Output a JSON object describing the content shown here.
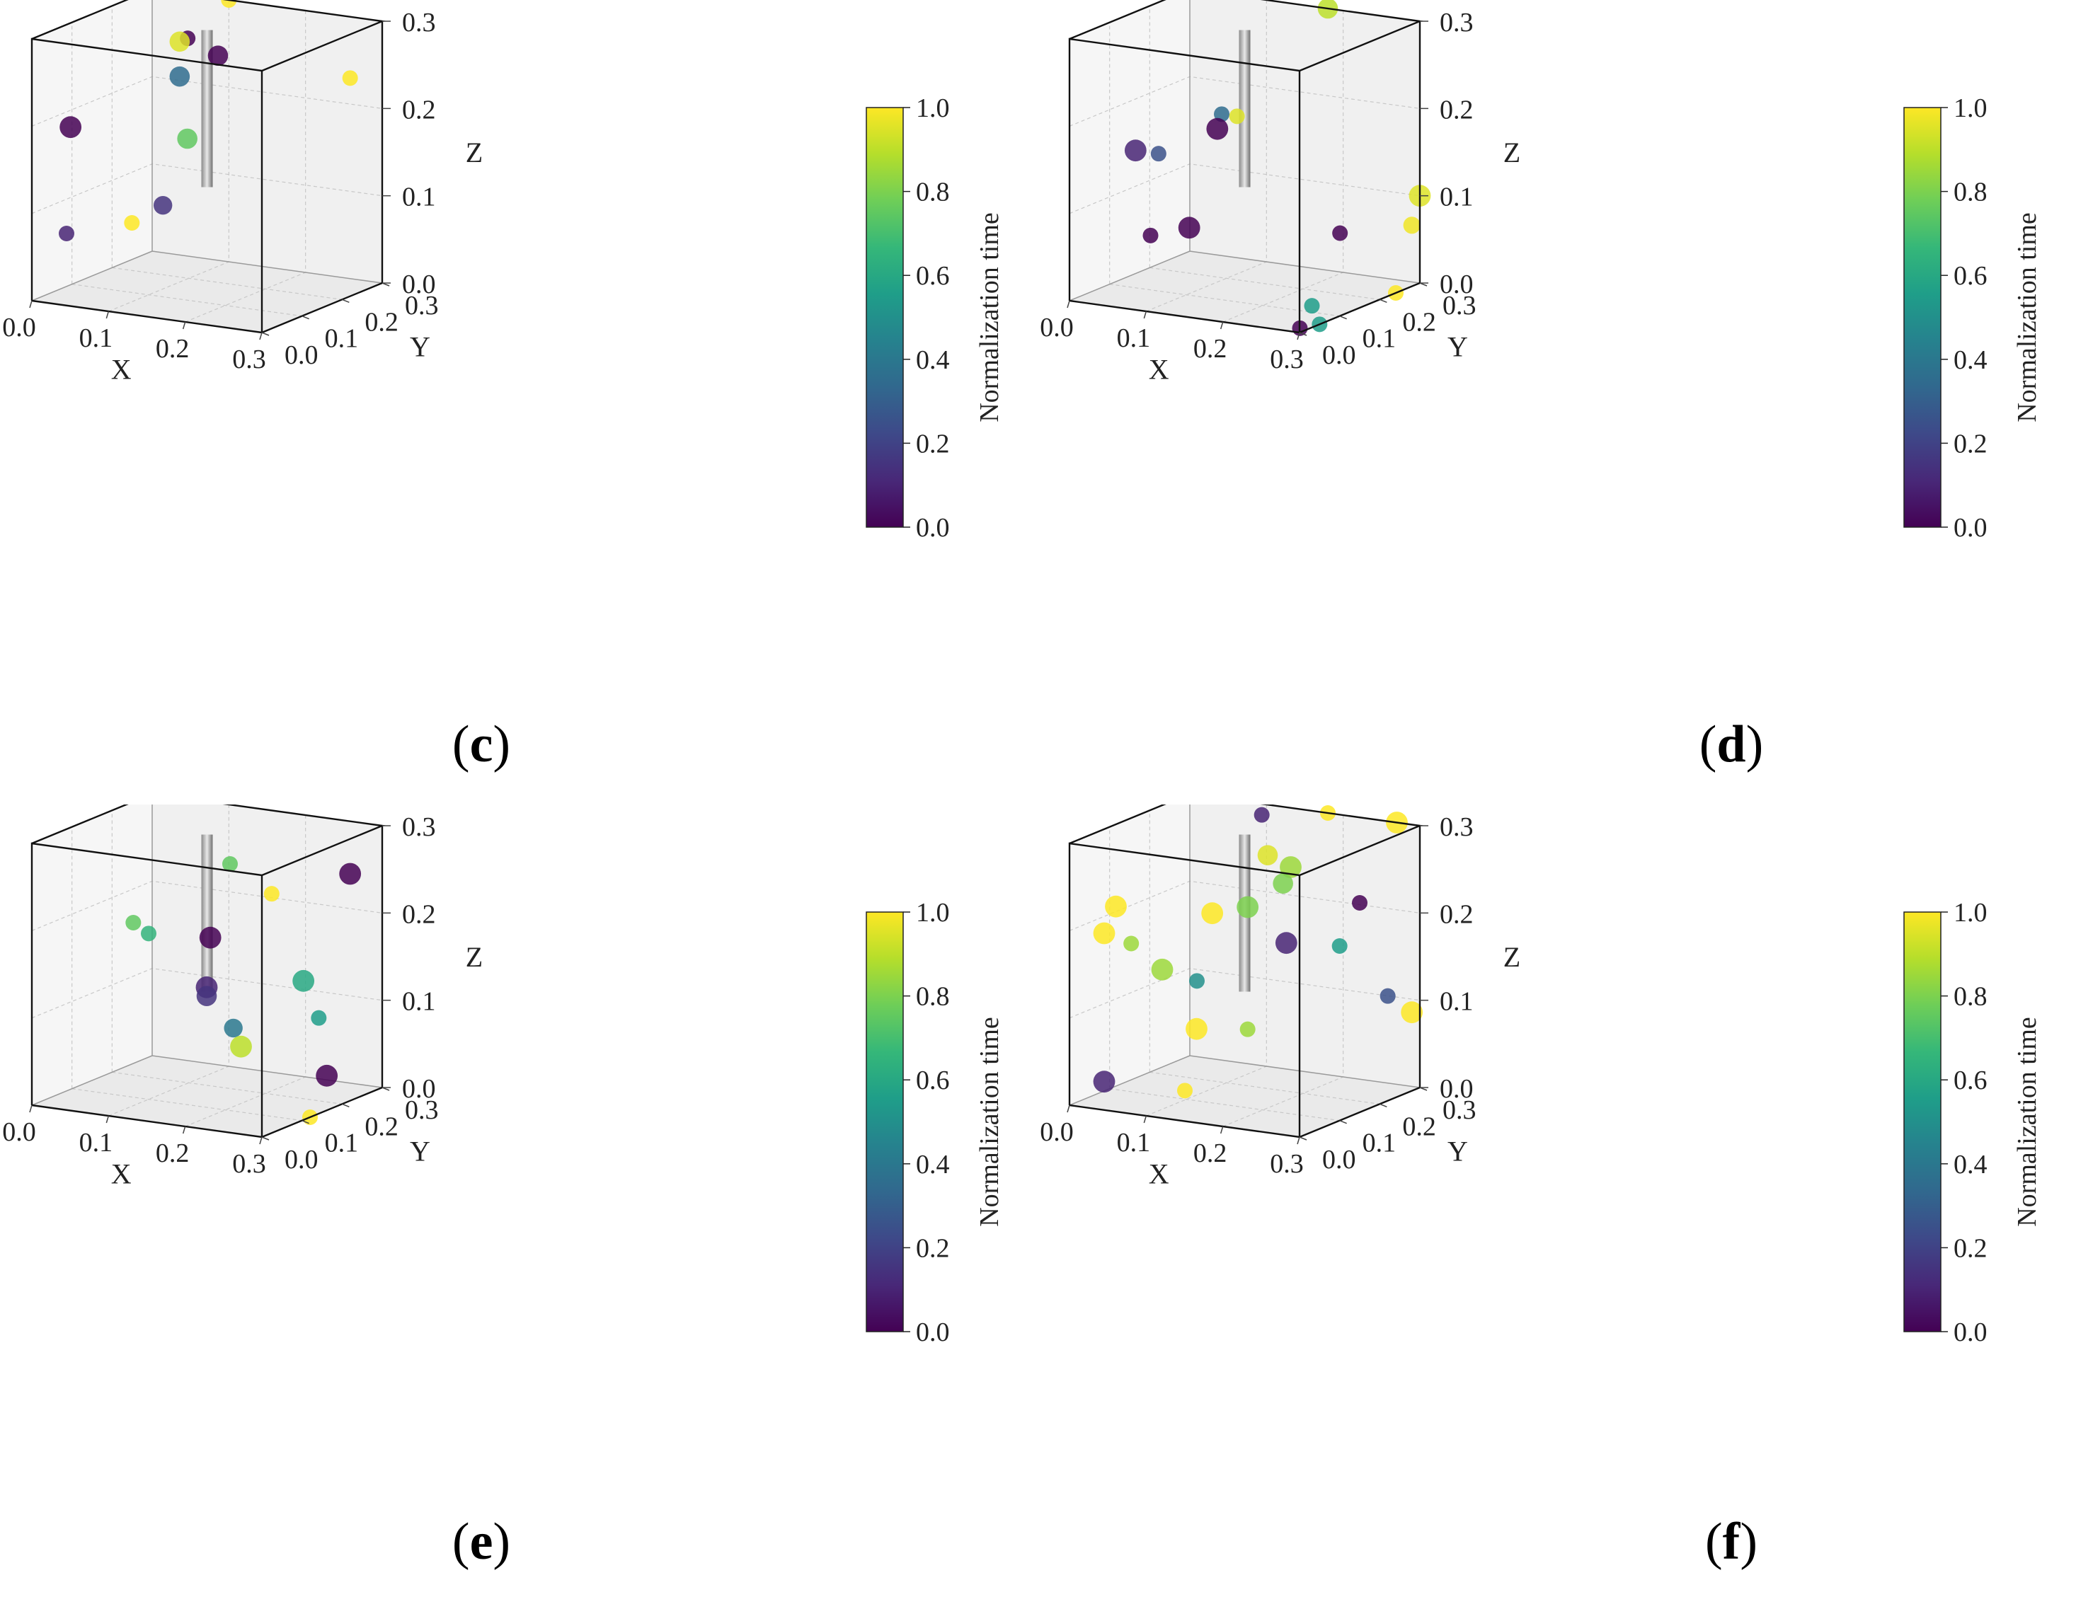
{
  "chart_data": [
    {
      "type": "scatter",
      "panel_label": "c",
      "xlabel": "X",
      "ylabel": "Y",
      "zlabel": "Z",
      "xlim": [
        0,
        0.3
      ],
      "ylim": [
        0,
        0.3
      ],
      "zlim": [
        0,
        0.3
      ],
      "x_ticks": [
        "0.0",
        "0.1",
        "0.2",
        "0.3"
      ],
      "y_ticks": [
        "0.0",
        "0.1",
        "0.2",
        "0.3"
      ],
      "z_ticks": [
        "0.0",
        "0.1",
        "0.2",
        "0.3"
      ],
      "colorbar": {
        "label": "Normalization time",
        "range": [
          0,
          1
        ],
        "ticks": [
          "0.0",
          "0.2",
          "0.4",
          "0.6",
          "0.8",
          "1.0"
        ],
        "colormap": "viridis"
      },
      "rod": {
        "x": 0.15,
        "y": 0.15,
        "z_range": [
          0.12,
          0.3
        ]
      },
      "points": [
        {
          "x": 0.1,
          "y": 0.3,
          "z": 0.3,
          "t": 1.0,
          "s": 1
        },
        {
          "x": 0.13,
          "y": 0.14,
          "z": 0.29,
          "t": 0.0,
          "s": 1
        },
        {
          "x": 0.13,
          "y": 0.12,
          "z": 0.29,
          "t": 0.95,
          "s": 1.3
        },
        {
          "x": 0.18,
          "y": 0.12,
          "z": 0.28,
          "t": 0.0,
          "s": 1.3
        },
        {
          "x": 0.13,
          "y": 0.12,
          "z": 0.25,
          "t": 0.35,
          "s": 1.3
        },
        {
          "x": 0.14,
          "y": 0.12,
          "z": 0.18,
          "t": 0.75,
          "s": 1.3
        },
        {
          "x": 0.3,
          "y": 0.22,
          "z": 0.25,
          "t": 1.0,
          "s": 1
        },
        {
          "x": 0.04,
          "y": 0.02,
          "z": 0.2,
          "t": 0.0,
          "s": 1.4
        },
        {
          "x": 0.04,
          "y": 0.01,
          "z": 0.08,
          "t": 0.1,
          "s": 1
        },
        {
          "x": 0.12,
          "y": 0.02,
          "z": 0.1,
          "t": 1.0,
          "s": 1
        },
        {
          "x": 0.15,
          "y": 0.04,
          "z": 0.12,
          "t": 0.15,
          "s": 1.2
        }
      ]
    },
    {
      "type": "scatter",
      "panel_label": "d",
      "xlabel": "X",
      "ylabel": "Y",
      "zlabel": "Z",
      "xlim": [
        0,
        0.3
      ],
      "ylim": [
        0,
        0.3
      ],
      "zlim": [
        0,
        0.3
      ],
      "x_ticks": [
        "0.0",
        "0.1",
        "0.2",
        "0.3"
      ],
      "y_ticks": [
        "0.0",
        "0.1",
        "0.2",
        "0.3"
      ],
      "z_ticks": [
        "0.0",
        "0.1",
        "0.2",
        "0.3"
      ],
      "colorbar": {
        "label": "Normalization time",
        "range": [
          0,
          1
        ],
        "ticks": [
          "0.0",
          "0.2",
          "0.4",
          "0.6",
          "0.8",
          "1.0"
        ],
        "colormap": "viridis"
      },
      "rod": {
        "x": 0.15,
        "y": 0.15,
        "z_range": [
          0.12,
          0.3
        ]
      },
      "points": [
        {
          "x": 0.18,
          "y": 0.3,
          "z": 0.3,
          "t": 0.9,
          "s": 1.3
        },
        {
          "x": 0.12,
          "y": 0.15,
          "z": 0.2,
          "t": 0.35,
          "s": 1
        },
        {
          "x": 0.14,
          "y": 0.15,
          "z": 0.2,
          "t": 0.95,
          "s": 1
        },
        {
          "x": 0.13,
          "y": 0.12,
          "z": 0.19,
          "t": 0.0,
          "s": 1.4
        },
        {
          "x": 0.06,
          "y": 0.05,
          "z": 0.17,
          "t": 0.1,
          "s": 1.4
        },
        {
          "x": 0.09,
          "y": 0.05,
          "z": 0.17,
          "t": 0.25,
          "s": 1
        },
        {
          "x": 0.09,
          "y": 0.03,
          "z": 0.08,
          "t": 0.0,
          "s": 1
        },
        {
          "x": 0.13,
          "y": 0.05,
          "z": 0.09,
          "t": 0.0,
          "s": 1.4
        },
        {
          "x": 0.29,
          "y": 0.12,
          "z": 0.09,
          "t": 0.0,
          "s": 1
        },
        {
          "x": 0.3,
          "y": 0.3,
          "z": 0.1,
          "t": 0.95,
          "s": 1.4
        },
        {
          "x": 0.3,
          "y": 0.28,
          "z": 0.07,
          "t": 0.98,
          "s": 1.1
        },
        {
          "x": 0.3,
          "y": 0.24,
          "z": 0.0,
          "t": 1.0,
          "s": 1
        },
        {
          "x": 0.29,
          "y": 0.05,
          "z": 0.02,
          "t": 0.55,
          "s": 1
        },
        {
          "x": 0.29,
          "y": 0.02,
          "z": 0.0,
          "t": 0.0,
          "s": 1
        },
        {
          "x": 0.3,
          "y": 0.05,
          "z": 0.0,
          "t": 0.55,
          "s": 1
        }
      ]
    },
    {
      "type": "scatter",
      "panel_label": "e",
      "xlabel": "X",
      "ylabel": "Y",
      "zlabel": "Z",
      "xlim": [
        0,
        0.3
      ],
      "ylim": [
        0,
        0.3
      ],
      "zlim": [
        0,
        0.3
      ],
      "x_ticks": [
        "0.0",
        "0.1",
        "0.2",
        "0.3"
      ],
      "y_ticks": [
        "0.0",
        "0.1",
        "0.2",
        "0.3"
      ],
      "z_ticks": [
        "0.0",
        "0.1",
        "0.2",
        "0.3"
      ],
      "colorbar": {
        "label": "Normalization time",
        "range": [
          0,
          1
        ],
        "ticks": [
          "0.0",
          "0.2",
          "0.4",
          "0.6",
          "0.8",
          "1.0"
        ],
        "colormap": "viridis"
      },
      "rod": {
        "x": 0.15,
        "y": 0.15,
        "z_range": [
          0.12,
          0.3
        ]
      },
      "points": [
        {
          "x": 0.18,
          "y": 0.15,
          "z": 0.27,
          "t": 0.75,
          "s": 1
        },
        {
          "x": 0.25,
          "y": 0.12,
          "z": 0.25,
          "t": 1.0,
          "s": 1
        },
        {
          "x": 0.3,
          "y": 0.22,
          "z": 0.26,
          "t": 0.0,
          "s": 1.4
        },
        {
          "x": 0.08,
          "y": 0.1,
          "z": 0.2,
          "t": 0.75,
          "s": 1
        },
        {
          "x": 0.1,
          "y": 0.1,
          "z": 0.19,
          "t": 0.65,
          "s": 1
        },
        {
          "x": 0.17,
          "y": 0.12,
          "z": 0.19,
          "t": 0.0,
          "s": 1.4
        },
        {
          "x": 0.26,
          "y": 0.18,
          "z": 0.14,
          "t": 0.6,
          "s": 1.4
        },
        {
          "x": 0.28,
          "y": 0.18,
          "z": 0.1,
          "t": 0.55,
          "s": 1
        },
        {
          "x": 0.16,
          "y": 0.13,
          "z": 0.13,
          "t": 0.1,
          "s": 1.4
        },
        {
          "x": 0.16,
          "y": 0.13,
          "z": 0.12,
          "t": 0.15,
          "s": 1.3
        },
        {
          "x": 0.2,
          "y": 0.12,
          "z": 0.09,
          "t": 0.4,
          "s": 1.2
        },
        {
          "x": 0.21,
          "y": 0.12,
          "z": 0.07,
          "t": 0.9,
          "s": 1.4
        },
        {
          "x": 0.28,
          "y": 0.2,
          "z": 0.03,
          "t": 0.0,
          "s": 1.4
        },
        {
          "x": 0.3,
          "y": 0.12,
          "z": 0.0,
          "t": 1.0,
          "s": 1
        }
      ]
    },
    {
      "type": "scatter",
      "panel_label": "f",
      "xlabel": "X",
      "ylabel": "Y",
      "zlabel": "Z",
      "xlim": [
        0,
        0.3
      ],
      "ylim": [
        0,
        0.3
      ],
      "zlim": [
        0,
        0.3
      ],
      "x_ticks": [
        "0.0",
        "0.1",
        "0.2",
        "0.3"
      ],
      "y_ticks": [
        "0.0",
        "0.1",
        "0.2",
        "0.3"
      ],
      "z_ticks": [
        "0.0",
        "0.1",
        "0.2",
        "0.3"
      ],
      "colorbar": {
        "label": "Normalization time",
        "range": [
          0,
          1
        ],
        "ticks": [
          "0.0",
          "0.2",
          "0.4",
          "0.6",
          "0.8",
          "1.0"
        ],
        "colormap": "viridis"
      },
      "rod": {
        "x": 0.15,
        "y": 0.15,
        "z_range": [
          0.12,
          0.3
        ]
      },
      "points": [
        {
          "x": 0.18,
          "y": 0.3,
          "z": 0.3,
          "t": 1.0,
          "s": 1
        },
        {
          "x": 0.12,
          "y": 0.25,
          "z": 0.3,
          "t": 0.1,
          "s": 1
        },
        {
          "x": 0.18,
          "y": 0.15,
          "z": 0.28,
          "t": 0.95,
          "s": 1.3
        },
        {
          "x": 0.21,
          "y": 0.15,
          "z": 0.27,
          "t": 0.85,
          "s": 1.4
        },
        {
          "x": 0.2,
          "y": 0.15,
          "z": 0.25,
          "t": 0.8,
          "s": 1.3
        },
        {
          "x": 0.27,
          "y": 0.3,
          "z": 0.3,
          "t": 1.0,
          "s": 1.4
        },
        {
          "x": 0.18,
          "y": 0.1,
          "z": 0.23,
          "t": 0.8,
          "s": 1.4
        },
        {
          "x": 0.16,
          "y": 0.05,
          "z": 0.23,
          "t": 1.0,
          "s": 1.4
        },
        {
          "x": 0.3,
          "y": 0.15,
          "z": 0.24,
          "t": 0.0,
          "s": 1
        },
        {
          "x": 0.22,
          "y": 0.12,
          "z": 0.19,
          "t": 0.1,
          "s": 1.4
        },
        {
          "x": 0.05,
          "y": 0.02,
          "z": 0.23,
          "t": 1.0,
          "s": 1.4
        },
        {
          "x": 0.04,
          "y": 0.01,
          "z": 0.2,
          "t": 1.0,
          "s": 1.4
        },
        {
          "x": 0.07,
          "y": 0.02,
          "z": 0.19,
          "t": 0.85,
          "s": 1
        },
        {
          "x": 0.1,
          "y": 0.04,
          "z": 0.16,
          "t": 0.85,
          "s": 1.4
        },
        {
          "x": 0.14,
          "y": 0.05,
          "z": 0.15,
          "t": 0.5,
          "s": 1
        },
        {
          "x": 0.15,
          "y": 0.03,
          "z": 0.1,
          "t": 1.0,
          "s": 1.4
        },
        {
          "x": 0.3,
          "y": 0.22,
          "z": 0.12,
          "t": 0.25,
          "s": 1
        },
        {
          "x": 0.3,
          "y": 0.1,
          "z": 0.2,
          "t": 0.55,
          "s": 1
        },
        {
          "x": 0.3,
          "y": 0.28,
          "z": 0.09,
          "t": 1.0,
          "s": 1.4
        },
        {
          "x": 0.18,
          "y": 0.1,
          "z": 0.09,
          "t": 0.85,
          "s": 1
        },
        {
          "x": 0.14,
          "y": 0.02,
          "z": 0.03,
          "t": 1.0,
          "s": 1
        },
        {
          "x": 0.04,
          "y": 0.01,
          "z": 0.03,
          "t": 0.1,
          "s": 1.4
        }
      ]
    }
  ]
}
